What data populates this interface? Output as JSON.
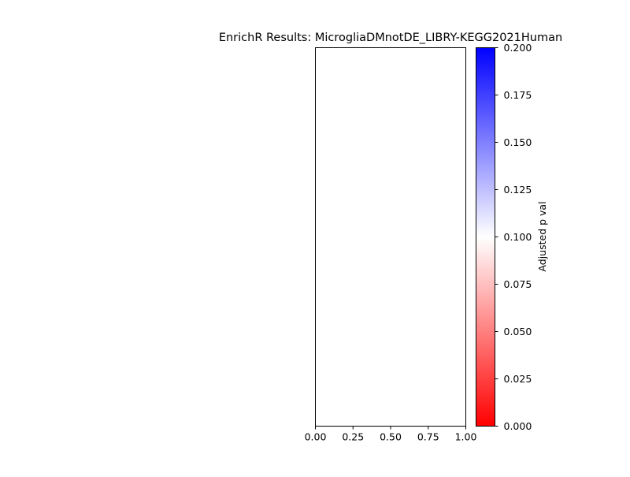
{
  "chart_data": {
    "type": "bar",
    "title": "EnrichR Results: MicrogliaDMnotDE_LIBRY-KEGG2021Human",
    "categories": [],
    "values": [],
    "xlabel": "",
    "ylabel": "",
    "xlim": [
      0,
      1
    ],
    "x_ticks": [
      "0.00",
      "0.25",
      "0.50",
      "0.75",
      "1.00"
    ],
    "grid": false,
    "colorbar": {
      "label": "Adjusted p val",
      "range": [
        0,
        0.2
      ],
      "ticks": [
        "0.000",
        "0.025",
        "0.050",
        "0.075",
        "0.100",
        "0.125",
        "0.150",
        "0.175",
        "0.200"
      ],
      "colors": {
        "low": "#ff0000",
        "mid": "#ffffff",
        "high": "#0000ff"
      }
    }
  }
}
